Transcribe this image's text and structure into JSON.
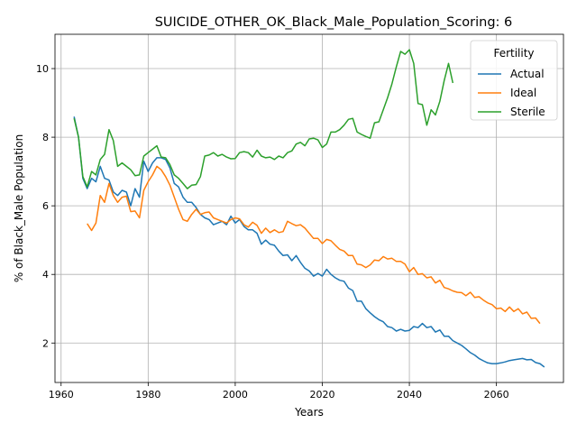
{
  "chart_data": {
    "type": "line",
    "title": "SUICIDE_OTHER_OK_Black_Male_Population_Scoring: 6",
    "xlabel": "Years",
    "ylabel": "% of Black_Male Population",
    "xlim": [
      1958.6,
      2075.4
    ],
    "ylim": [
      0.85,
      11.0
    ],
    "xticks": [
      1960,
      1980,
      2000,
      2020,
      2040,
      2060
    ],
    "yticks": [
      2,
      4,
      6,
      8,
      10
    ],
    "grid": true,
    "legend": {
      "title": "Fertility",
      "placement": "top-right"
    },
    "series": [
      {
        "name": "Actual",
        "color": "#1f77b4",
        "points": [
          [
            1963,
            8.6
          ],
          [
            1964,
            8.0
          ],
          [
            1965,
            6.8
          ],
          [
            1966,
            6.5
          ],
          [
            1967,
            6.8
          ],
          [
            1968,
            6.7
          ],
          [
            1969,
            7.15
          ],
          [
            1970,
            6.8
          ],
          [
            1971,
            6.75
          ],
          [
            1972,
            6.4
          ],
          [
            1973,
            6.3
          ],
          [
            1974,
            6.45
          ],
          [
            1975,
            6.4
          ],
          [
            1976,
            6.0
          ],
          [
            1977,
            6.5
          ],
          [
            1978,
            6.25
          ],
          [
            1979,
            7.3
          ],
          [
            1980,
            7.0
          ],
          [
            1981,
            7.25
          ],
          [
            1982,
            7.4
          ],
          [
            1983,
            7.4
          ],
          [
            1984,
            7.35
          ],
          [
            1985,
            7.1
          ],
          [
            1986,
            6.65
          ],
          [
            1987,
            6.55
          ],
          [
            1988,
            6.25
          ],
          [
            1989,
            6.1
          ],
          [
            1990,
            6.1
          ],
          [
            1991,
            5.95
          ],
          [
            1992,
            5.75
          ],
          [
            1993,
            5.65
          ],
          [
            1994,
            5.6
          ],
          [
            1995,
            5.45
          ],
          [
            1996,
            5.5
          ],
          [
            1997,
            5.55
          ],
          [
            1998,
            5.45
          ],
          [
            1999,
            5.7
          ],
          [
            2000,
            5.5
          ],
          [
            2001,
            5.6
          ],
          [
            2002,
            5.4
          ],
          [
            2003,
            5.3
          ],
          [
            2004,
            5.3
          ],
          [
            2005,
            5.2
          ],
          [
            2006,
            4.88
          ],
          [
            2007,
            5.0
          ],
          [
            2008,
            4.88
          ],
          [
            2009,
            4.85
          ],
          [
            2010,
            4.68
          ],
          [
            2011,
            4.55
          ],
          [
            2012,
            4.57
          ],
          [
            2013,
            4.4
          ],
          [
            2014,
            4.55
          ],
          [
            2015,
            4.35
          ],
          [
            2016,
            4.18
          ],
          [
            2017,
            4.1
          ],
          [
            2018,
            3.95
          ],
          [
            2019,
            4.03
          ],
          [
            2020,
            3.95
          ],
          [
            2021,
            4.15
          ],
          [
            2022,
            4.0
          ],
          [
            2023,
            3.9
          ],
          [
            2024,
            3.83
          ],
          [
            2025,
            3.8
          ],
          [
            2026,
            3.6
          ],
          [
            2027,
            3.53
          ],
          [
            2028,
            3.22
          ],
          [
            2029,
            3.22
          ],
          [
            2030,
            3.0
          ],
          [
            2031,
            2.88
          ],
          [
            2032,
            2.77
          ],
          [
            2033,
            2.68
          ],
          [
            2034,
            2.62
          ],
          [
            2035,
            2.48
          ],
          [
            2036,
            2.45
          ],
          [
            2037,
            2.35
          ],
          [
            2038,
            2.4
          ],
          [
            2039,
            2.35
          ],
          [
            2040,
            2.37
          ],
          [
            2041,
            2.48
          ],
          [
            2042,
            2.45
          ],
          [
            2043,
            2.57
          ],
          [
            2044,
            2.45
          ],
          [
            2045,
            2.48
          ],
          [
            2046,
            2.32
          ],
          [
            2047,
            2.38
          ],
          [
            2048,
            2.2
          ],
          [
            2049,
            2.2
          ],
          [
            2050,
            2.07
          ],
          [
            2051,
            2.0
          ],
          [
            2052,
            1.93
          ],
          [
            2053,
            1.83
          ],
          [
            2054,
            1.72
          ],
          [
            2055,
            1.65
          ],
          [
            2056,
            1.55
          ],
          [
            2057,
            1.48
          ],
          [
            2058,
            1.42
          ],
          [
            2059,
            1.4
          ],
          [
            2060,
            1.4
          ],
          [
            2061,
            1.42
          ],
          [
            2062,
            1.45
          ],
          [
            2063,
            1.49
          ],
          [
            2064,
            1.51
          ],
          [
            2065,
            1.53
          ],
          [
            2066,
            1.55
          ],
          [
            2067,
            1.51
          ],
          [
            2068,
            1.52
          ],
          [
            2069,
            1.43
          ],
          [
            2070,
            1.4
          ],
          [
            2071,
            1.3
          ]
        ]
      },
      {
        "name": "Ideal",
        "color": "#ff7f0e",
        "points": [
          [
            1966,
            5.48
          ],
          [
            1967,
            5.28
          ],
          [
            1968,
            5.5
          ],
          [
            1969,
            6.3
          ],
          [
            1970,
            6.1
          ],
          [
            1971,
            6.65
          ],
          [
            1972,
            6.3
          ],
          [
            1973,
            6.1
          ],
          [
            1974,
            6.25
          ],
          [
            1975,
            6.28
          ],
          [
            1976,
            5.83
          ],
          [
            1977,
            5.85
          ],
          [
            1978,
            5.65
          ],
          [
            1979,
            6.45
          ],
          [
            1980,
            6.7
          ],
          [
            1981,
            6.9
          ],
          [
            1982,
            7.15
          ],
          [
            1983,
            7.05
          ],
          [
            1984,
            6.85
          ],
          [
            1985,
            6.6
          ],
          [
            1986,
            6.25
          ],
          [
            1987,
            5.9
          ],
          [
            1988,
            5.6
          ],
          [
            1989,
            5.55
          ],
          [
            1990,
            5.75
          ],
          [
            1991,
            5.9
          ],
          [
            1992,
            5.75
          ],
          [
            1993,
            5.8
          ],
          [
            1994,
            5.82
          ],
          [
            1995,
            5.65
          ],
          [
            1996,
            5.6
          ],
          [
            1997,
            5.55
          ],
          [
            1998,
            5.5
          ],
          [
            1999,
            5.6
          ],
          [
            2000,
            5.65
          ],
          [
            2001,
            5.62
          ],
          [
            2002,
            5.45
          ],
          [
            2003,
            5.38
          ],
          [
            2004,
            5.52
          ],
          [
            2005,
            5.43
          ],
          [
            2006,
            5.2
          ],
          [
            2007,
            5.35
          ],
          [
            2008,
            5.22
          ],
          [
            2009,
            5.3
          ],
          [
            2010,
            5.22
          ],
          [
            2011,
            5.25
          ],
          [
            2012,
            5.55
          ],
          [
            2013,
            5.48
          ],
          [
            2014,
            5.42
          ],
          [
            2015,
            5.45
          ],
          [
            2016,
            5.35
          ],
          [
            2017,
            5.2
          ],
          [
            2018,
            5.05
          ],
          [
            2019,
            5.05
          ],
          [
            2020,
            4.9
          ],
          [
            2021,
            5.02
          ],
          [
            2022,
            4.98
          ],
          [
            2023,
            4.85
          ],
          [
            2024,
            4.73
          ],
          [
            2025,
            4.68
          ],
          [
            2026,
            4.55
          ],
          [
            2027,
            4.55
          ],
          [
            2028,
            4.3
          ],
          [
            2029,
            4.28
          ],
          [
            2030,
            4.2
          ],
          [
            2031,
            4.28
          ],
          [
            2032,
            4.42
          ],
          [
            2033,
            4.4
          ],
          [
            2034,
            4.52
          ],
          [
            2035,
            4.45
          ],
          [
            2036,
            4.47
          ],
          [
            2037,
            4.38
          ],
          [
            2038,
            4.38
          ],
          [
            2039,
            4.3
          ],
          [
            2040,
            4.08
          ],
          [
            2041,
            4.2
          ],
          [
            2042,
            4.0
          ],
          [
            2043,
            4.02
          ],
          [
            2044,
            3.9
          ],
          [
            2045,
            3.93
          ],
          [
            2046,
            3.75
          ],
          [
            2047,
            3.83
          ],
          [
            2048,
            3.62
          ],
          [
            2049,
            3.58
          ],
          [
            2050,
            3.52
          ],
          [
            2051,
            3.48
          ],
          [
            2052,
            3.47
          ],
          [
            2053,
            3.38
          ],
          [
            2054,
            3.48
          ],
          [
            2055,
            3.33
          ],
          [
            2056,
            3.35
          ],
          [
            2057,
            3.25
          ],
          [
            2058,
            3.17
          ],
          [
            2059,
            3.12
          ],
          [
            2060,
            3.0
          ],
          [
            2061,
            3.02
          ],
          [
            2062,
            2.92
          ],
          [
            2063,
            3.05
          ],
          [
            2064,
            2.92
          ],
          [
            2065,
            3.0
          ],
          [
            2066,
            2.85
          ],
          [
            2067,
            2.9
          ],
          [
            2068,
            2.72
          ],
          [
            2069,
            2.73
          ],
          [
            2070,
            2.57
          ]
        ]
      },
      {
        "name": "Sterile",
        "color": "#2ca02c",
        "points": [
          [
            1963,
            8.55
          ],
          [
            1964,
            8.0
          ],
          [
            1965,
            6.85
          ],
          [
            1966,
            6.55
          ],
          [
            1967,
            7.0
          ],
          [
            1968,
            6.9
          ],
          [
            1969,
            7.35
          ],
          [
            1970,
            7.5
          ],
          [
            1971,
            8.22
          ],
          [
            1972,
            7.9
          ],
          [
            1973,
            7.15
          ],
          [
            1974,
            7.25
          ],
          [
            1975,
            7.15
          ],
          [
            1976,
            7.05
          ],
          [
            1977,
            6.88
          ],
          [
            1978,
            6.9
          ],
          [
            1979,
            7.45
          ],
          [
            1980,
            7.55
          ],
          [
            1981,
            7.65
          ],
          [
            1982,
            7.75
          ],
          [
            1983,
            7.42
          ],
          [
            1984,
            7.4
          ],
          [
            1985,
            7.2
          ],
          [
            1986,
            6.9
          ],
          [
            1987,
            6.8
          ],
          [
            1988,
            6.65
          ],
          [
            1989,
            6.5
          ],
          [
            1990,
            6.6
          ],
          [
            1991,
            6.62
          ],
          [
            1992,
            6.85
          ],
          [
            1993,
            7.45
          ],
          [
            1994,
            7.48
          ],
          [
            1995,
            7.55
          ],
          [
            1996,
            7.45
          ],
          [
            1997,
            7.5
          ],
          [
            1998,
            7.42
          ],
          [
            1999,
            7.37
          ],
          [
            2000,
            7.38
          ],
          [
            2001,
            7.55
          ],
          [
            2002,
            7.58
          ],
          [
            2003,
            7.55
          ],
          [
            2004,
            7.42
          ],
          [
            2005,
            7.62
          ],
          [
            2006,
            7.45
          ],
          [
            2007,
            7.4
          ],
          [
            2008,
            7.42
          ],
          [
            2009,
            7.35
          ],
          [
            2010,
            7.45
          ],
          [
            2011,
            7.4
          ],
          [
            2012,
            7.55
          ],
          [
            2013,
            7.6
          ],
          [
            2014,
            7.8
          ],
          [
            2015,
            7.85
          ],
          [
            2016,
            7.75
          ],
          [
            2017,
            7.95
          ],
          [
            2018,
            7.97
          ],
          [
            2019,
            7.92
          ],
          [
            2020,
            7.7
          ],
          [
            2021,
            7.8
          ],
          [
            2022,
            8.15
          ],
          [
            2023,
            8.15
          ],
          [
            2024,
            8.22
          ],
          [
            2025,
            8.35
          ],
          [
            2026,
            8.52
          ],
          [
            2027,
            8.55
          ],
          [
            2028,
            8.15
          ],
          [
            2029,
            8.08
          ],
          [
            2030,
            8.02
          ],
          [
            2031,
            7.97
          ],
          [
            2032,
            8.42
          ],
          [
            2033,
            8.45
          ],
          [
            2034,
            8.8
          ],
          [
            2035,
            9.15
          ],
          [
            2036,
            9.55
          ],
          [
            2037,
            10.05
          ],
          [
            2038,
            10.5
          ],
          [
            2039,
            10.42
          ],
          [
            2040,
            10.55
          ],
          [
            2041,
            10.15
          ],
          [
            2042,
            8.98
          ],
          [
            2043,
            8.95
          ],
          [
            2044,
            8.35
          ],
          [
            2045,
            8.8
          ],
          [
            2046,
            8.65
          ],
          [
            2047,
            9.05
          ],
          [
            2048,
            9.65
          ],
          [
            2049,
            10.15
          ],
          [
            2050,
            9.58
          ]
        ]
      }
    ]
  }
}
